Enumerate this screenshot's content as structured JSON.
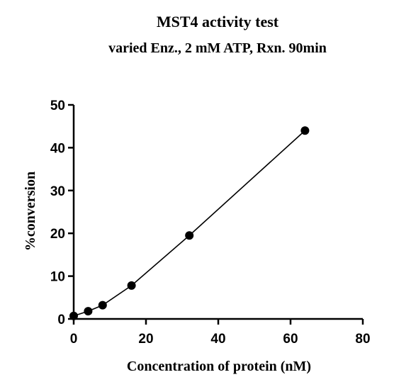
{
  "chart_data": {
    "type": "scatter",
    "title": "MST4 activity test",
    "subtitle": "varied Enz., 2 mM ATP, Rxn. 90min",
    "xlabel": "Concentration of protein (nM)",
    "ylabel": "%conversion",
    "xlim": [
      0,
      80
    ],
    "ylim": [
      0,
      50
    ],
    "xticks": [
      0,
      20,
      40,
      60,
      80
    ],
    "yticks": [
      0,
      10,
      20,
      30,
      40,
      50
    ],
    "grid": false,
    "legend": "none",
    "connected": true,
    "marker_color": "#000000",
    "line_color": "#000000",
    "series": [
      {
        "x": [
          0,
          4,
          8,
          16,
          32,
          64
        ],
        "y": [
          0.7,
          1.8,
          3.2,
          7.8,
          19.5,
          44
        ]
      }
    ]
  }
}
